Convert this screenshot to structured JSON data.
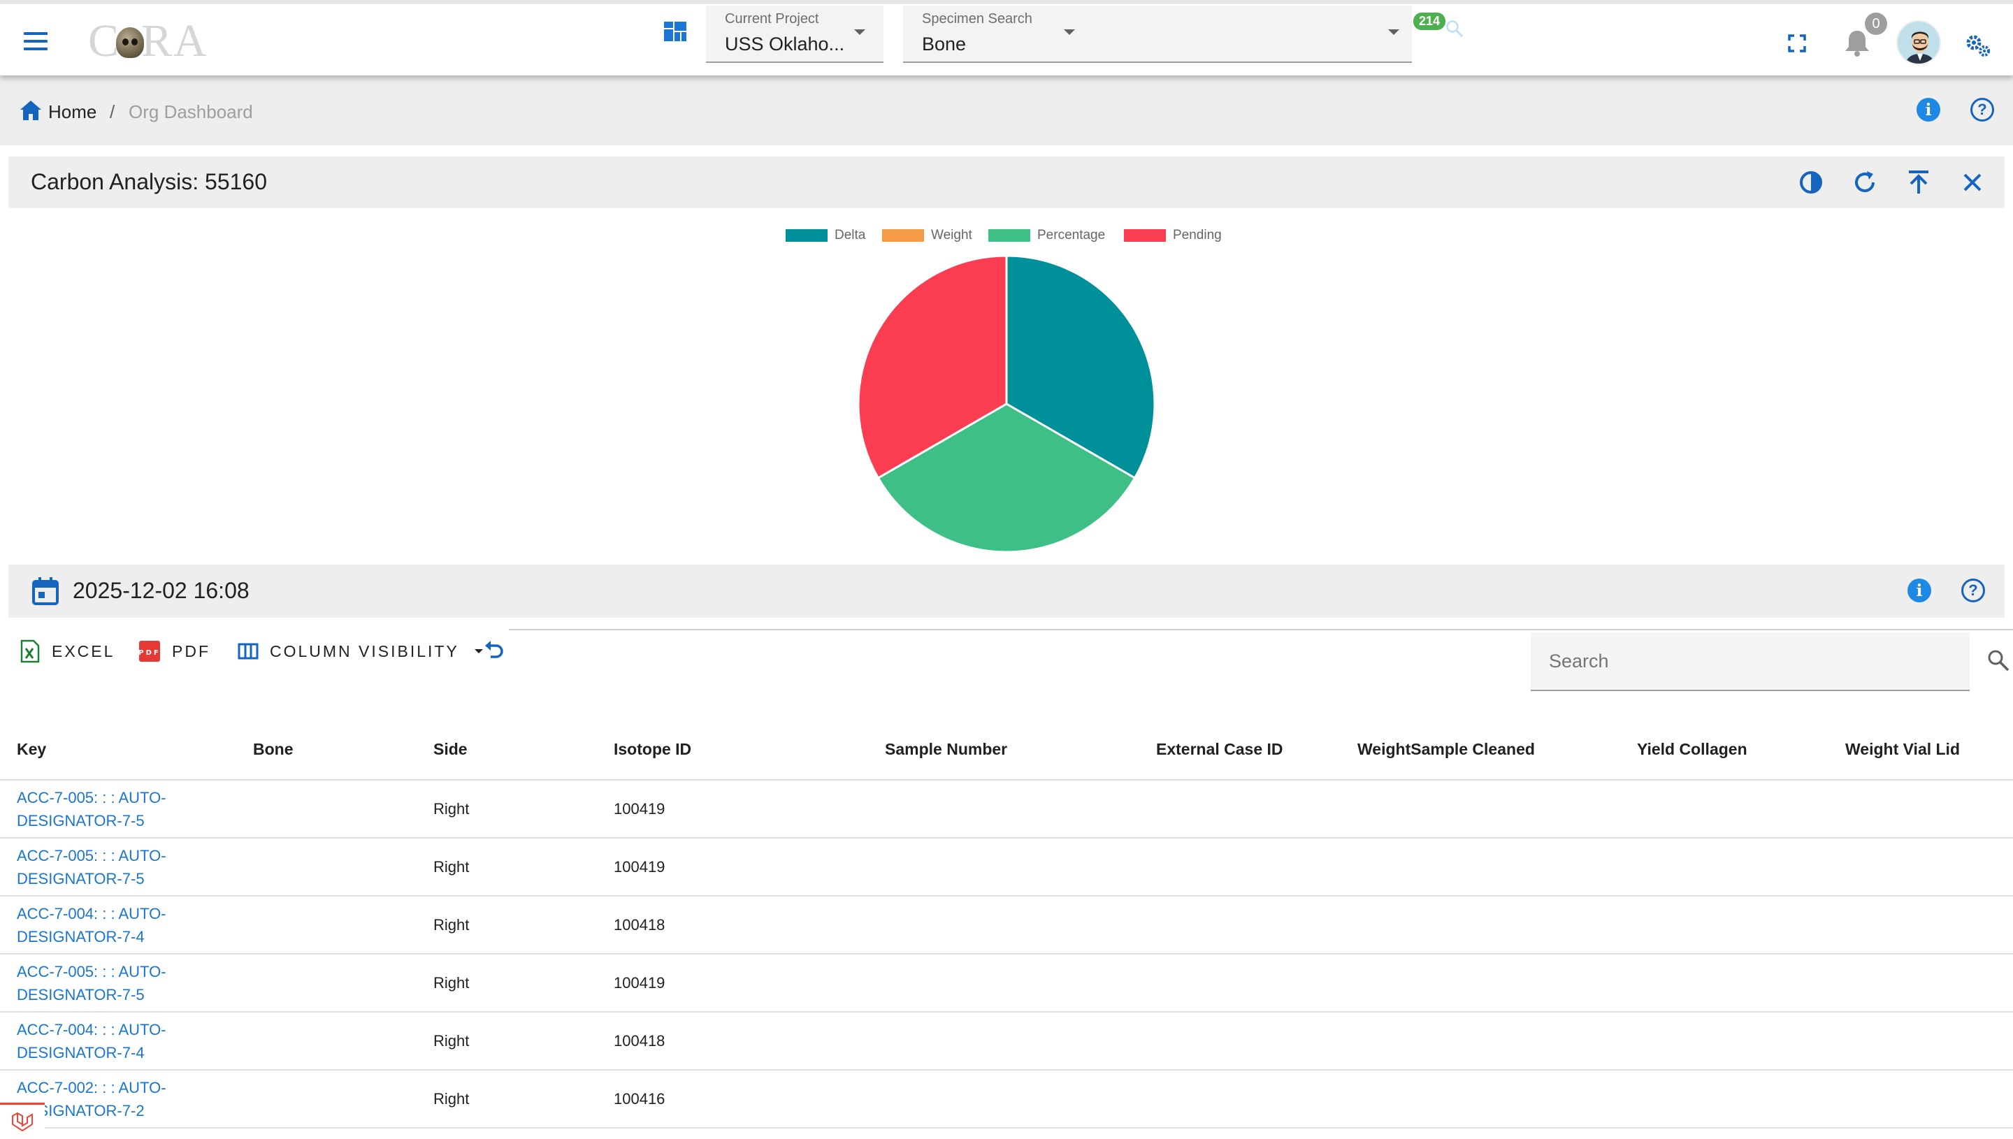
{
  "app": {
    "logo_text": "CORA"
  },
  "header": {
    "current_project_label": "Current Project",
    "current_project_value": "USS Oklaho...",
    "specimen_search_label": "Specimen Search",
    "specimen_search_value": "Bone",
    "specimen_count": "214",
    "notification_count": "0"
  },
  "breadcrumb": {
    "home": "Home",
    "separator": "/",
    "current": "Org Dashboard"
  },
  "card": {
    "title": "Carbon Analysis: 55160"
  },
  "chart_data": {
    "type": "pie",
    "categories": [
      "Delta",
      "Weight",
      "Percentage",
      "Pending"
    ],
    "values": [
      1,
      0,
      1,
      1
    ],
    "colors": [
      "#009099",
      "#f39c45",
      "#3dbf85",
      "#fb3d52"
    ],
    "legend_position": "top"
  },
  "date_bar": {
    "date": "2025-12-02 16:08"
  },
  "toolbar": {
    "excel_label": "EXCEL",
    "pdf_label": "PDF",
    "column_visibility_label": "COLUMN VISIBILITY",
    "search_placeholder": "Search"
  },
  "table": {
    "columns": [
      "Key",
      "Bone",
      "Side",
      "Isotope ID",
      "Sample Number",
      "External Case ID",
      "WeightSample Cleaned",
      "Yield Collagen",
      "Weight Vial Lid"
    ],
    "rows": [
      {
        "key_line1": "ACC-7-005: : : AUTO-",
        "key_line2": "DESIGNATOR-7-5",
        "bone": "",
        "side": "Right",
        "isotope_id": "100419"
      },
      {
        "key_line1": "ACC-7-005: : : AUTO-",
        "key_line2": "DESIGNATOR-7-5",
        "bone": "",
        "side": "Right",
        "isotope_id": "100419"
      },
      {
        "key_line1": "ACC-7-004: : : AUTO-",
        "key_line2": "DESIGNATOR-7-4",
        "bone": "",
        "side": "Right",
        "isotope_id": "100418"
      },
      {
        "key_line1": "ACC-7-005: : : AUTO-",
        "key_line2": "DESIGNATOR-7-5",
        "bone": "",
        "side": "Right",
        "isotope_id": "100419"
      },
      {
        "key_line1": "ACC-7-004: : : AUTO-",
        "key_line2": "DESIGNATOR-7-4",
        "bone": "",
        "side": "Right",
        "isotope_id": "100418"
      },
      {
        "key_line1": "ACC-7-002: : : AUTO-",
        "key_line2": "DESIGNATOR-7-2",
        "bone": "",
        "side": "Right",
        "isotope_id": "100416"
      }
    ]
  }
}
